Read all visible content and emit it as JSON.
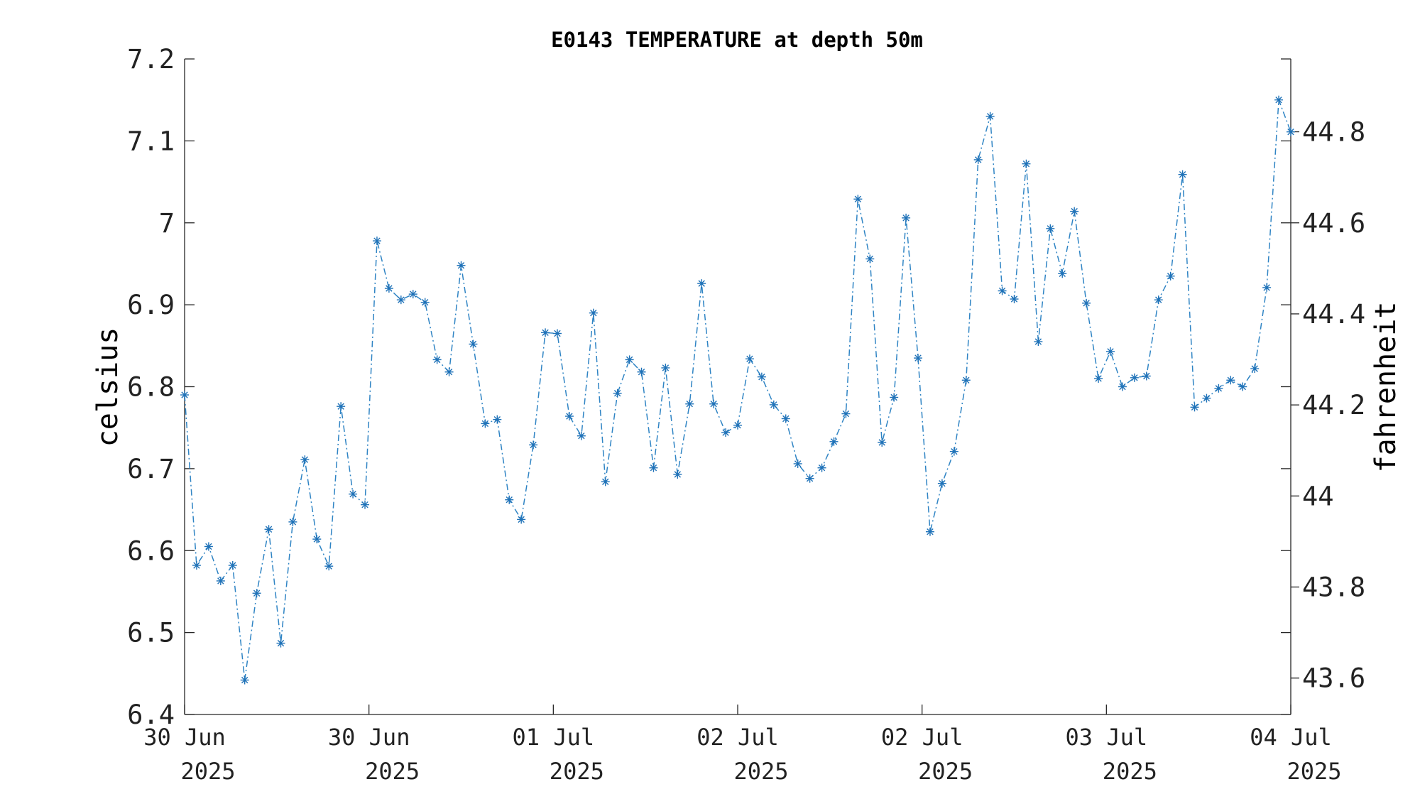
{
  "chart_data": {
    "type": "line",
    "title": "E0143 TEMPERATURE at depth 50m",
    "ylabel": "celsius",
    "y2label": "fahrenheit",
    "ylim": [
      6.4,
      7.2
    ],
    "yticks": [
      6.4,
      6.5,
      6.6,
      6.7,
      6.8,
      6.9,
      7.0,
      7.1,
      7.2
    ],
    "y2ticks": [
      43.6,
      43.8,
      44.0,
      44.2,
      44.4,
      44.6,
      44.8
    ],
    "xticks": [
      {
        "line1": "30 Jun",
        "line2": "2025"
      },
      {
        "line1": "30 Jun",
        "line2": "2025"
      },
      {
        "line1": "01 Jul",
        "line2": "2025"
      },
      {
        "line1": "02 Jul",
        "line2": "2025"
      },
      {
        "line1": "02 Jul",
        "line2": "2025"
      },
      {
        "line1": "03 Jul",
        "line2": "2025"
      },
      {
        "line1": "04 Jul",
        "line2": "2025"
      }
    ],
    "grid": false,
    "marker": "asterisk",
    "line_style": "dash-dot",
    "series_color": "#1f72b8",
    "values": [
      6.79,
      6.582,
      6.605,
      6.563,
      6.582,
      6.442,
      6.548,
      6.626,
      6.487,
      6.635,
      6.711,
      6.614,
      6.581,
      6.776,
      6.669,
      6.656,
      6.978,
      6.92,
      6.906,
      6.913,
      6.903,
      6.833,
      6.818,
      6.948,
      6.852,
      6.755,
      6.76,
      6.662,
      6.638,
      6.729,
      6.866,
      6.865,
      6.764,
      6.74,
      6.89,
      6.684,
      6.792,
      6.833,
      6.818,
      6.701,
      6.823,
      6.693,
      6.779,
      6.926,
      6.779,
      6.744,
      6.753,
      6.834,
      6.812,
      6.778,
      6.761,
      6.706,
      6.688,
      6.701,
      6.733,
      6.767,
      7.029,
      6.956,
      6.732,
      6.787,
      7.006,
      6.835,
      6.623,
      6.682,
      6.721,
      6.808,
      7.077,
      7.13,
      6.917,
      6.907,
      7.072,
      6.855,
      6.993,
      6.938,
      7.014,
      6.902,
      6.81,
      6.843,
      6.8,
      6.811,
      6.813,
      6.906,
      6.935,
      7.059,
      6.775,
      6.786,
      6.798,
      6.808,
      6.8,
      6.822,
      6.921,
      7.15,
      7.111
    ]
  }
}
